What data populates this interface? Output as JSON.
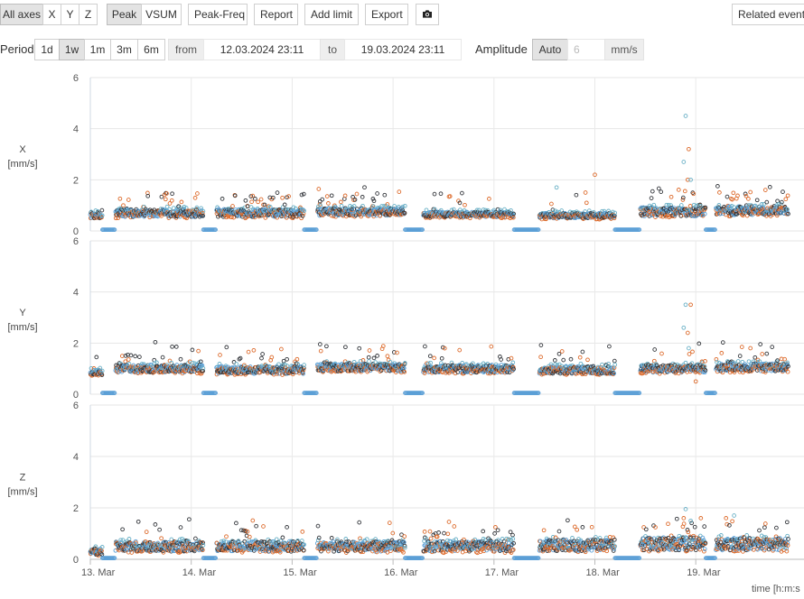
{
  "toolbar": {
    "axes": [
      "All axes",
      "X",
      "Y",
      "Z"
    ],
    "axes_active": "All axes",
    "modes": [
      "Peak",
      "VSUM"
    ],
    "mode_active": "Peak",
    "peak_freq": "Peak-Freq",
    "report": "Report",
    "add_limit": "Add limit",
    "export": "Export",
    "camera_icon": "camera-icon",
    "related_events": "Related events"
  },
  "period_bar": {
    "label": "Period",
    "periods": [
      "1d",
      "1w",
      "1m",
      "3m",
      "6m"
    ],
    "period_active": "1w",
    "from_label": "from",
    "from_value": "12.03.2024 23:11",
    "to_label": "to",
    "to_value": "19.03.2024 23:11",
    "amplitude_label": "Amplitude",
    "amplitude_auto": "Auto",
    "amplitude_placeholder": "6",
    "amplitude_unit": "mm/s"
  },
  "chart_data": {
    "type": "scatter",
    "x_tick_labels": [
      "13. Mar",
      "14. Mar",
      "15. Mar",
      "16. Mar",
      "17. Mar",
      "18. Mar",
      "19. Mar"
    ],
    "xlabel": "time [h:m:s",
    "xlim_days": [
      -0.1,
      6.92
    ],
    "grid": true,
    "marker_colors": {
      "s1": "#dd6b2c",
      "s2": "#33363b",
      "s3": "#5b9fd6",
      "s4": "#6ab0c6"
    },
    "panels": [
      {
        "name": "X",
        "ylabel": "X",
        "yunit": "[mm/s]",
        "ylim": [
          0,
          6
        ],
        "yticks": [
          0,
          2,
          4,
          6
        ],
        "segments": [
          {
            "start": 0.0,
            "end": 0.12,
            "base": 0.6,
            "spread": 0.25,
            "spikes": 0.05
          },
          {
            "start": 0.25,
            "end": 1.12,
            "base": 0.7,
            "spread": 0.3,
            "spikes": 0.18
          },
          {
            "start": 1.25,
            "end": 2.12,
            "base": 0.7,
            "spread": 0.3,
            "spikes": 0.2
          },
          {
            "start": 2.25,
            "end": 3.12,
            "base": 0.75,
            "spread": 0.3,
            "spikes": 0.18
          },
          {
            "start": 3.3,
            "end": 4.2,
            "base": 0.65,
            "spread": 0.2,
            "spikes": 0.05
          },
          {
            "start": 4.45,
            "end": 5.2,
            "base": 0.6,
            "spread": 0.2,
            "spikes": 0.06
          },
          {
            "start": 5.45,
            "end": 6.1,
            "base": 0.75,
            "spread": 0.35,
            "spikes": 0.16
          },
          {
            "start": 6.2,
            "end": 6.92,
            "base": 0.8,
            "spread": 0.35,
            "spikes": 0.18
          }
        ],
        "outliers": [
          {
            "x": 5.9,
            "y": 4.5
          },
          {
            "x": 5.93,
            "y": 3.2
          },
          {
            "x": 5.88,
            "y": 2.7
          },
          {
            "x": 5.92,
            "y": 2.0
          },
          {
            "x": 5.95,
            "y": 2.0
          },
          {
            "x": 5.0,
            "y": 2.2
          },
          {
            "x": 4.62,
            "y": 1.7
          }
        ]
      },
      {
        "name": "Y",
        "ylabel": "Y",
        "yunit": "[mm/s]",
        "ylim": [
          0,
          6
        ],
        "yticks": [
          0,
          2,
          4,
          6
        ],
        "segments": [
          {
            "start": 0.0,
            "end": 0.12,
            "base": 0.85,
            "spread": 0.2,
            "spikes": 0.05
          },
          {
            "start": 0.25,
            "end": 1.12,
            "base": 1.0,
            "spread": 0.3,
            "spikes": 0.12
          },
          {
            "start": 1.25,
            "end": 2.12,
            "base": 0.95,
            "spread": 0.3,
            "spikes": 0.12
          },
          {
            "start": 2.25,
            "end": 3.12,
            "base": 1.05,
            "spread": 0.3,
            "spikes": 0.14
          },
          {
            "start": 3.3,
            "end": 4.2,
            "base": 1.0,
            "spread": 0.3,
            "spikes": 0.1
          },
          {
            "start": 4.45,
            "end": 5.2,
            "base": 0.95,
            "spread": 0.3,
            "spikes": 0.1
          },
          {
            "start": 5.45,
            "end": 6.1,
            "base": 1.0,
            "spread": 0.3,
            "spikes": 0.12
          },
          {
            "start": 6.2,
            "end": 6.92,
            "base": 1.05,
            "spread": 0.3,
            "spikes": 0.12
          }
        ],
        "outliers": [
          {
            "x": 5.9,
            "y": 3.5
          },
          {
            "x": 5.95,
            "y": 3.5
          },
          {
            "x": 5.88,
            "y": 2.6
          },
          {
            "x": 5.92,
            "y": 2.4
          },
          {
            "x": 5.93,
            "y": 1.8
          },
          {
            "x": 6.0,
            "y": 0.5
          }
        ]
      },
      {
        "name": "Z",
        "ylabel": "Z",
        "yunit": "[mm/s]",
        "ylim": [
          0,
          6
        ],
        "yticks": [
          0,
          2,
          4,
          6
        ],
        "segments": [
          {
            "start": 0.0,
            "end": 0.12,
            "base": 0.3,
            "spread": 0.25,
            "spikes": 0.05
          },
          {
            "start": 0.25,
            "end": 1.12,
            "base": 0.5,
            "spread": 0.4,
            "spikes": 0.1
          },
          {
            "start": 1.25,
            "end": 2.12,
            "base": 0.5,
            "spread": 0.4,
            "spikes": 0.1
          },
          {
            "start": 2.25,
            "end": 3.12,
            "base": 0.5,
            "spread": 0.4,
            "spikes": 0.1
          },
          {
            "start": 3.3,
            "end": 4.2,
            "base": 0.5,
            "spread": 0.4,
            "spikes": 0.1
          },
          {
            "start": 4.45,
            "end": 5.2,
            "base": 0.55,
            "spread": 0.45,
            "spikes": 0.1
          },
          {
            "start": 5.45,
            "end": 6.1,
            "base": 0.6,
            "spread": 0.5,
            "spikes": 0.14
          },
          {
            "start": 6.2,
            "end": 6.92,
            "base": 0.6,
            "spread": 0.5,
            "spikes": 0.12
          }
        ],
        "outliers": [
          {
            "x": 5.9,
            "y": 1.95
          },
          {
            "x": 5.88,
            "y": 1.6
          },
          {
            "x": 5.95,
            "y": 1.5
          },
          {
            "x": 6.3,
            "y": 1.6
          },
          {
            "x": 6.38,
            "y": 1.7
          },
          {
            "x": 6.05,
            "y": 1.6
          }
        ]
      }
    ],
    "gaps_near_zero": [
      {
        "start": 0.12,
        "end": 0.25
      },
      {
        "start": 1.12,
        "end": 1.25
      },
      {
        "start": 2.12,
        "end": 2.25
      },
      {
        "start": 3.12,
        "end": 3.3
      },
      {
        "start": 4.2,
        "end": 4.45
      },
      {
        "start": 5.2,
        "end": 5.45
      },
      {
        "start": 6.1,
        "end": 6.2
      }
    ]
  }
}
